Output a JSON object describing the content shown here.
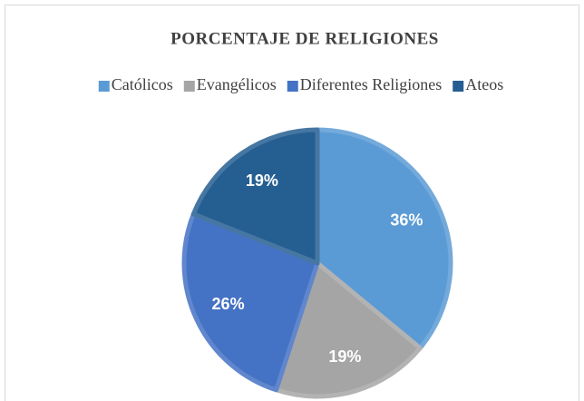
{
  "chart_data": {
    "type": "pie",
    "title": "PORCENTAJE DE RELIGIONES",
    "categories": [
      "Católicos",
      "Evangélicos",
      "Diferentes Religiones",
      "Ateos"
    ],
    "values": [
      36,
      19,
      26,
      19
    ],
    "value_labels": [
      "36%",
      "19%",
      "26%",
      "19%"
    ],
    "colors": [
      "#5b9bd5",
      "#a5a5a5",
      "#4472c4",
      "#255e91"
    ],
    "legend": "top"
  }
}
